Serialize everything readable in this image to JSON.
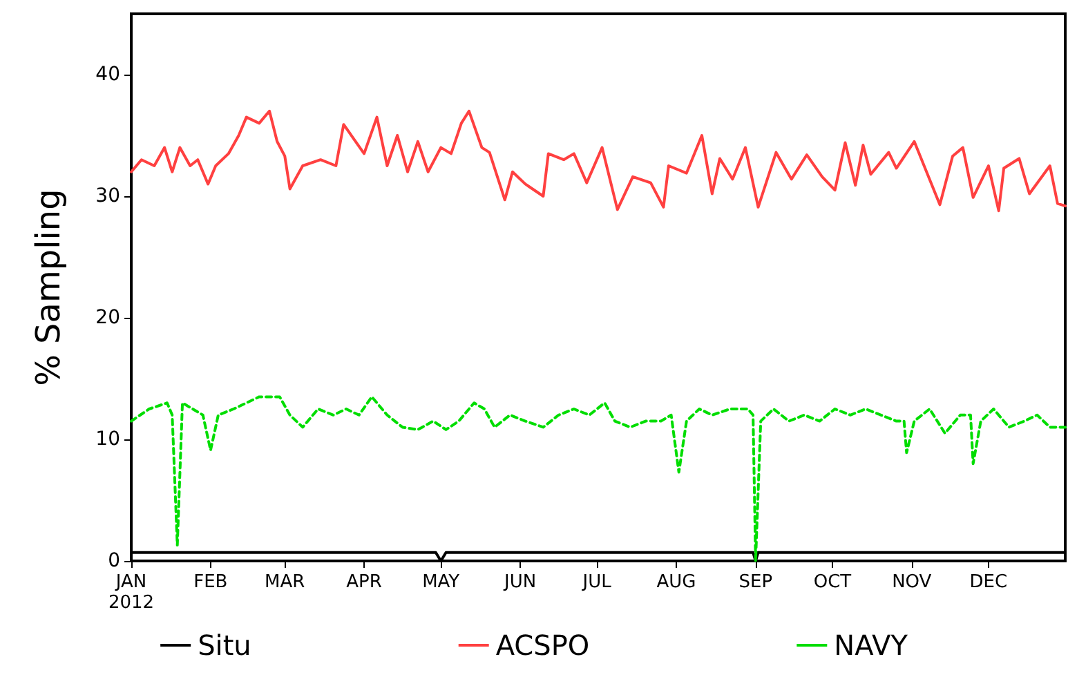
{
  "chart_data": {
    "type": "line",
    "ylabel": "% Sampling",
    "xlim": [
      "2012-01-01",
      "2012-12-31"
    ],
    "ylim": [
      0,
      45
    ],
    "yticks": [
      0,
      10,
      20,
      30,
      40
    ],
    "xticks": [
      {
        "value": "2012-01-01",
        "label": "JAN\n2012"
      },
      {
        "value": "2012-02-01",
        "label": "FEB"
      },
      {
        "value": "2012-03-01",
        "label": "MAR"
      },
      {
        "value": "2012-04-01",
        "label": "APR"
      },
      {
        "value": "2012-05-01",
        "label": "MAY"
      },
      {
        "value": "2012-06-01",
        "label": "JUN"
      },
      {
        "value": "2012-07-01",
        "label": "JUL"
      },
      {
        "value": "2012-08-01",
        "label": "AUG"
      },
      {
        "value": "2012-09-01",
        "label": "SEP"
      },
      {
        "value": "2012-10-01",
        "label": "OCT"
      },
      {
        "value": "2012-11-01",
        "label": "NOV"
      },
      {
        "value": "2012-12-01",
        "label": "DEC"
      }
    ],
    "grid": false,
    "legend": "bottom",
    "marker": "none",
    "series": [
      {
        "name": "Situ",
        "color": "#000000",
        "line_style": "solid",
        "x": [
          "2012-01-01",
          "2012-04-29",
          "2012-05-01",
          "2012-05-03",
          "2012-08-31",
          "2012-09-01",
          "2012-09-02",
          "2012-12-31"
        ],
        "values": [
          0.7,
          0.7,
          0,
          0.7,
          0.7,
          0,
          0.7,
          0.7
        ]
      },
      {
        "name": "ACSPO",
        "color": "#ff4040",
        "line_style": "solid",
        "x": [
          "2012-01-01",
          "2012-01-05",
          "2012-01-10",
          "2012-01-14",
          "2012-01-17",
          "2012-01-20",
          "2012-01-24",
          "2012-01-27",
          "2012-01-31",
          "2012-02-03",
          "2012-02-08",
          "2012-02-12",
          "2012-02-15",
          "2012-02-20",
          "2012-02-24",
          "2012-02-27",
          "2012-03-01",
          "2012-03-03",
          "2012-03-08",
          "2012-03-15",
          "2012-03-21",
          "2012-03-24",
          "2012-04-01",
          "2012-04-06",
          "2012-04-10",
          "2012-04-14",
          "2012-04-18",
          "2012-04-22",
          "2012-04-26",
          "2012-05-01",
          "2012-05-05",
          "2012-05-09",
          "2012-05-12",
          "2012-05-17",
          "2012-05-20",
          "2012-05-26",
          "2012-05-29",
          "2012-06-03",
          "2012-06-10",
          "2012-06-12",
          "2012-06-18",
          "2012-06-22",
          "2012-06-27",
          "2012-07-03",
          "2012-07-09",
          "2012-07-15",
          "2012-07-22",
          "2012-07-27",
          "2012-07-29",
          "2012-08-05",
          "2012-08-11",
          "2012-08-15",
          "2012-08-18",
          "2012-08-23",
          "2012-08-28",
          "2012-09-02",
          "2012-09-09",
          "2012-09-15",
          "2012-09-21",
          "2012-09-27",
          "2012-10-02",
          "2012-10-06",
          "2012-10-10",
          "2012-10-13",
          "2012-10-16",
          "2012-10-23",
          "2012-10-26",
          "2012-11-02",
          "2012-11-12",
          "2012-11-17",
          "2012-11-21",
          "2012-11-25",
          "2012-12-01",
          "2012-12-05",
          "2012-12-07",
          "2012-12-13",
          "2012-12-17",
          "2012-12-25",
          "2012-12-28",
          "2012-12-31"
        ],
        "values": [
          32,
          33,
          32.5,
          34,
          32,
          34,
          32.5,
          33,
          31,
          32.5,
          33.5,
          35,
          36.5,
          36,
          37,
          34.5,
          33.3,
          30.6,
          32.5,
          33,
          32.5,
          35.9,
          33.5,
          36.5,
          32.5,
          35,
          32,
          34.5,
          32,
          34,
          33.5,
          36,
          37,
          34,
          33.6,
          29.7,
          32,
          31,
          30,
          33.5,
          33,
          33.5,
          31.1,
          34,
          28.9,
          31.6,
          31.1,
          29.1,
          32.5,
          31.9,
          35,
          30.2,
          33.1,
          31.4,
          34,
          29.1,
          33.6,
          31.4,
          33.4,
          31.6,
          30.5,
          34.4,
          30.9,
          34.2,
          31.8,
          33.6,
          32.3,
          34.5,
          29.3,
          33.3,
          34,
          29.9,
          32.5,
          28.8,
          32.3,
          33.1,
          30.2,
          32.5,
          29.4,
          29.2
        ]
      },
      {
        "name": "NAVY",
        "color": "#00dd00",
        "line_style": "dashed",
        "x": [
          "2012-01-01",
          "2012-01-08",
          "2012-01-15",
          "2012-01-17",
          "2012-01-19",
          "2012-01-21",
          "2012-01-25",
          "2012-01-29",
          "2012-02-01",
          "2012-02-04",
          "2012-02-10",
          "2012-02-15",
          "2012-02-20",
          "2012-02-28",
          "2012-03-03",
          "2012-03-08",
          "2012-03-14",
          "2012-03-20",
          "2012-03-25",
          "2012-03-30",
          "2012-04-04",
          "2012-04-10",
          "2012-04-16",
          "2012-04-22",
          "2012-04-28",
          "2012-05-03",
          "2012-05-08",
          "2012-05-14",
          "2012-05-18",
          "2012-05-22",
          "2012-05-28",
          "2012-06-03",
          "2012-06-10",
          "2012-06-16",
          "2012-06-22",
          "2012-06-28",
          "2012-07-04",
          "2012-07-08",
          "2012-07-14",
          "2012-07-20",
          "2012-07-26",
          "2012-07-30",
          "2012-08-02",
          "2012-08-05",
          "2012-08-10",
          "2012-08-15",
          "2012-08-22",
          "2012-08-29",
          "2012-08-31",
          "2012-09-01",
          "2012-09-03",
          "2012-09-08",
          "2012-09-14",
          "2012-09-20",
          "2012-09-26",
          "2012-10-02",
          "2012-10-08",
          "2012-10-14",
          "2012-10-20",
          "2012-10-26",
          "2012-10-29",
          "2012-10-30",
          "2012-11-02",
          "2012-11-08",
          "2012-11-14",
          "2012-11-20",
          "2012-11-24",
          "2012-11-25",
          "2012-11-28",
          "2012-12-03",
          "2012-12-09",
          "2012-12-15",
          "2012-12-20",
          "2012-12-25",
          "2012-12-31"
        ],
        "values": [
          11.5,
          12.5,
          13,
          12,
          1.3,
          13,
          12.5,
          12,
          9.1,
          12,
          12.5,
          13,
          13.5,
          13.5,
          12,
          11,
          12.5,
          12,
          12.5,
          12,
          13.5,
          12,
          11,
          10.8,
          11.5,
          10.8,
          11.5,
          13,
          12.5,
          11,
          12,
          11.5,
          11,
          12,
          12.5,
          12,
          13,
          11.5,
          11,
          11.5,
          11.5,
          12,
          7.3,
          11.5,
          12.5,
          12,
          12.5,
          12.5,
          12,
          0,
          11.5,
          12.5,
          11.5,
          12,
          11.5,
          12.5,
          12,
          12.5,
          12,
          11.5,
          11.5,
          8.9,
          11.5,
          12.5,
          10.5,
          12,
          12,
          8,
          11.5,
          12.5,
          11,
          11.5,
          12,
          11,
          11
        ]
      }
    ]
  }
}
